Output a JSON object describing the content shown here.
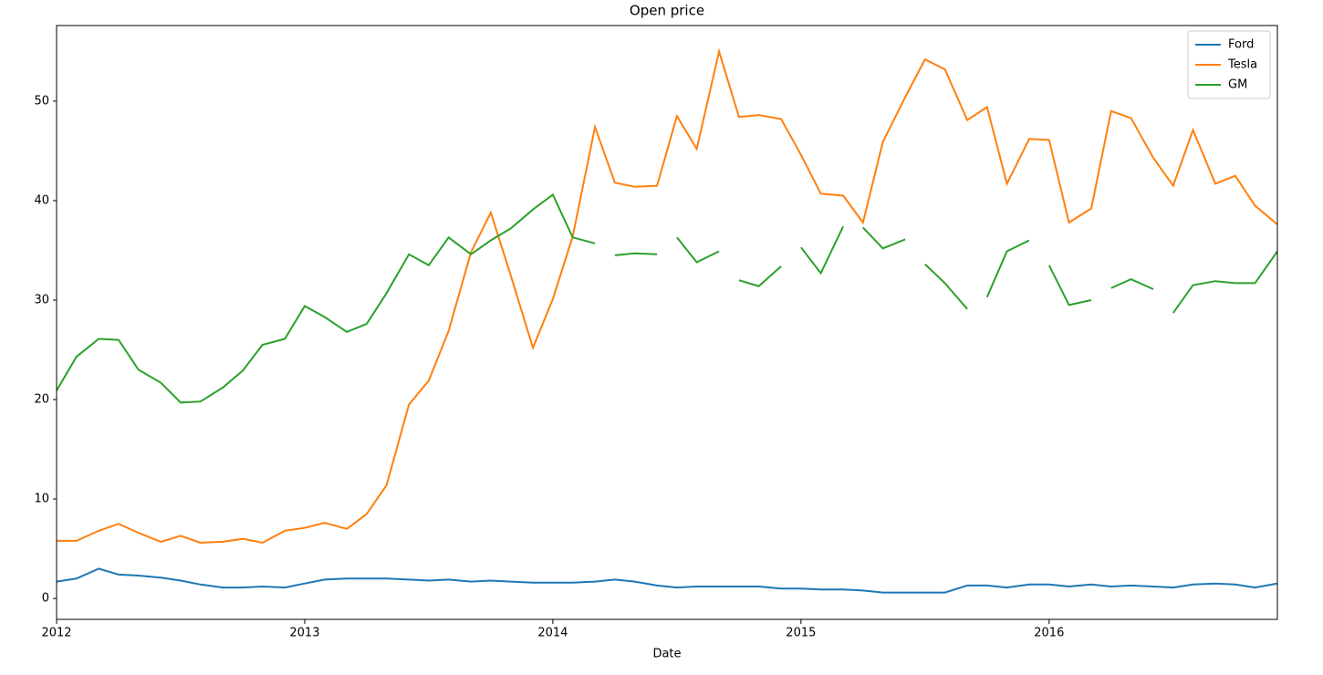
{
  "chart_data": {
    "type": "line",
    "title": "Open price",
    "xlabel": "Date",
    "x": [
      2012.0,
      2012.08,
      2012.17,
      2012.25,
      2012.33,
      2012.42,
      2012.5,
      2012.58,
      2012.67,
      2012.75,
      2012.83,
      2012.92,
      2013.0,
      2013.08,
      2013.17,
      2013.25,
      2013.33,
      2013.42,
      2013.5,
      2013.58,
      2013.67,
      2013.75,
      2013.83,
      2013.92,
      2014.0,
      2014.08,
      2014.17,
      2014.25,
      2014.33,
      2014.42,
      2014.5,
      2014.58,
      2014.67,
      2014.75,
      2014.83,
      2014.92,
      2015.0,
      2015.08,
      2015.17,
      2015.25,
      2015.33,
      2015.42,
      2015.5,
      2015.58,
      2015.67,
      2015.75,
      2015.83,
      2015.92,
      2016.0,
      2016.08,
      2016.17,
      2016.25,
      2016.33,
      2016.42,
      2016.5,
      2016.58,
      2016.67,
      2016.75,
      2016.83,
      2016.92
    ],
    "series": [
      {
        "name": "Ford",
        "color": "#1f77b4",
        "values": [
          1.7,
          2.0,
          3.0,
          2.4,
          2.3,
          2.1,
          1.8,
          1.4,
          1.1,
          1.1,
          1.2,
          1.1,
          1.5,
          1.9,
          2.0,
          2.0,
          2.0,
          1.9,
          1.8,
          1.9,
          1.7,
          1.8,
          1.7,
          1.6,
          1.6,
          1.6,
          1.7,
          1.9,
          1.7,
          1.3,
          1.1,
          1.2,
          1.2,
          1.2,
          1.2,
          1.0,
          1.0,
          0.9,
          0.9,
          0.8,
          0.6,
          0.6,
          0.6,
          0.6,
          1.3,
          1.3,
          1.1,
          1.4,
          1.4,
          1.2,
          1.4,
          1.2,
          1.3,
          1.2,
          1.1,
          1.4,
          1.5,
          1.4,
          1.1,
          1.5
        ]
      },
      {
        "name": "Tesla",
        "color": "#ff7f0e",
        "values": [
          5.8,
          5.8,
          6.8,
          7.5,
          6.6,
          5.7,
          6.3,
          5.6,
          5.7,
          6.0,
          5.6,
          6.8,
          7.1,
          7.6,
          7.0,
          8.5,
          11.4,
          19.5,
          21.9,
          26.9,
          34.8,
          38.8,
          32.5,
          25.2,
          30.1,
          36.4,
          47.4,
          41.8,
          41.4,
          41.5,
          48.5,
          45.2,
          55.0,
          48.4,
          48.6,
          48.2,
          44.6,
          40.7,
          40.5,
          37.8,
          45.9,
          50.4,
          54.2,
          53.2,
          48.1,
          49.4,
          41.7,
          46.2,
          46.1,
          37.8,
          39.2,
          49.0,
          48.3,
          44.3,
          41.5,
          47.1,
          41.7,
          42.5,
          39.5,
          37.6
        ]
      },
      {
        "name": "GM",
        "color": "#2ca02c",
        "x": [
          2012.0,
          2012.08,
          2012.17,
          2012.25,
          2012.33,
          2012.42,
          2012.5,
          2012.58,
          2012.67,
          2012.75,
          2012.83,
          2012.92,
          2013.0,
          2013.08,
          2013.17,
          2013.25,
          2013.33,
          2013.42,
          2013.5,
          2013.58,
          2013.67,
          2013.75,
          2013.83,
          2013.92,
          2014.0,
          2014.08,
          2014.17,
          null,
          2014.25,
          2014.33,
          2014.42,
          null,
          2014.5,
          2014.58,
          2014.67,
          null,
          2014.75,
          2014.83,
          2014.92,
          null,
          2015.0,
          2015.08,
          2015.17,
          null,
          2015.25,
          2015.33,
          2015.42,
          null,
          2015.5,
          2015.58,
          2015.67,
          null,
          2015.75,
          2015.83,
          2015.92,
          null,
          2016.0,
          2016.08,
          2016.17,
          null,
          2016.25,
          2016.33,
          2016.42,
          null,
          2016.5,
          2016.58,
          2016.67,
          2016.75,
          2016.83,
          2016.92
        ],
        "values": [
          20.9,
          24.3,
          26.1,
          26.0,
          23.0,
          21.7,
          19.7,
          19.8,
          21.2,
          22.9,
          25.5,
          26.1,
          29.4,
          28.3,
          26.8,
          27.6,
          30.7,
          34.6,
          33.5,
          36.3,
          34.6,
          36.0,
          37.2,
          39.1,
          40.6,
          36.3,
          35.7,
          null,
          34.5,
          34.7,
          34.6,
          null,
          36.3,
          33.8,
          34.9,
          null,
          32.0,
          31.4,
          33.4,
          null,
          35.3,
          32.7,
          37.4,
          null,
          37.3,
          35.2,
          36.1,
          null,
          33.6,
          31.7,
          29.1,
          null,
          30.3,
          34.9,
          36.0,
          null,
          33.5,
          29.5,
          30.0,
          null,
          31.2,
          32.1,
          31.1,
          null,
          28.7,
          31.5,
          31.9,
          31.7,
          31.7,
          34.9
        ]
      }
    ],
    "xlim": [
      2012.0,
      2016.92
    ],
    "xticks": [
      2012,
      2013,
      2014,
      2015,
      2016
    ],
    "ylim": [
      -2.1,
      57.6
    ],
    "yticks": [
      0,
      10,
      20,
      30,
      40,
      50
    ],
    "legend": "upper right",
    "grid": false
  }
}
